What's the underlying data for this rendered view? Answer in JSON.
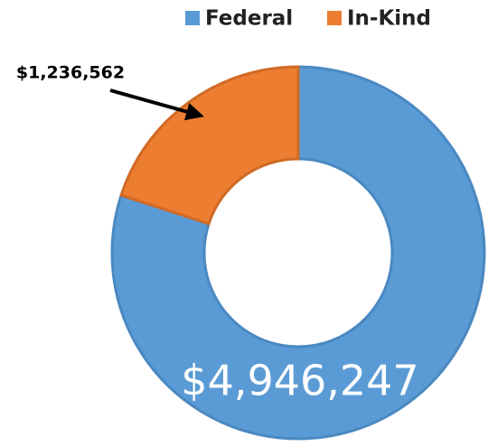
{
  "chart_data": {
    "type": "pie",
    "donut": true,
    "categories": [
      "Federal",
      "In-Kind"
    ],
    "values": [
      4946247,
      1236562
    ],
    "value_labels": [
      "$4,946,247",
      "$1,236,562"
    ],
    "colors": [
      "#5b9bd5",
      "#ed7d31"
    ],
    "legend": "top"
  }
}
